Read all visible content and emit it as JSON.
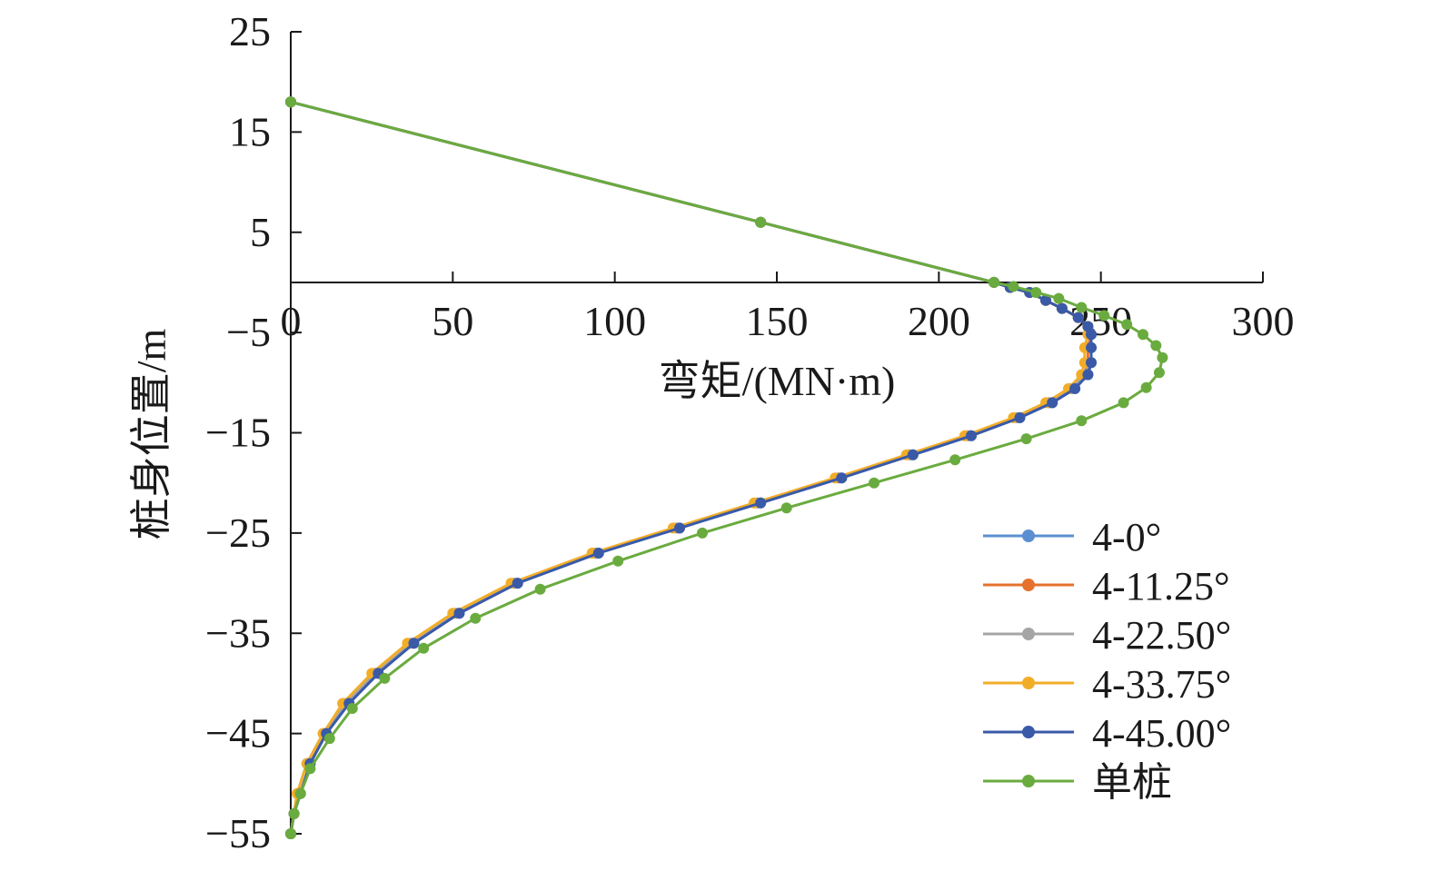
{
  "chart_data": {
    "type": "line",
    "xlabel": "弯矩/(MN·m)",
    "ylabel": "桩身位置/m",
    "xlim": [
      0,
      300
    ],
    "ylim": [
      -55,
      25
    ],
    "x_ticks": [
      "0",
      "50",
      "100",
      "150",
      "200",
      "250",
      "300"
    ],
    "y_ticks": [
      "25",
      "15",
      "5",
      "−5",
      "−15",
      "−25",
      "−35",
      "−45",
      "−55"
    ],
    "grid": false,
    "legend_position": "bottom-right",
    "series": [
      {
        "name": "4-0°",
        "color": "#5b8fd1",
        "points": [
          [
            0,
            18
          ],
          [
            145,
            6
          ],
          [
            217,
            0
          ],
          [
            222,
            -0.5
          ],
          [
            228,
            -1
          ],
          [
            233,
            -1.8
          ],
          [
            238,
            -2.6
          ],
          [
            243,
            -3.5
          ],
          [
            246,
            -4.4
          ],
          [
            247,
            -5.2
          ],
          [
            247,
            -6.5
          ],
          [
            247,
            -8
          ],
          [
            246,
            -9.2
          ],
          [
            242,
            -10.6
          ],
          [
            235,
            -12
          ],
          [
            225,
            -13.5
          ],
          [
            210,
            -15.3
          ],
          [
            192,
            -17.2
          ],
          [
            170,
            -19.5
          ],
          [
            145,
            -22
          ],
          [
            120,
            -24.5
          ],
          [
            95,
            -27
          ],
          [
            70,
            -30
          ],
          [
            52,
            -33
          ],
          [
            38,
            -36
          ],
          [
            27,
            -39
          ],
          [
            18,
            -42
          ],
          [
            11,
            -45
          ],
          [
            6,
            -48
          ],
          [
            3,
            -51
          ],
          [
            1,
            -53
          ],
          [
            0,
            -55
          ]
        ]
      },
      {
        "name": "4-11.25°",
        "color": "#e4722c",
        "points": [
          [
            0,
            18
          ],
          [
            145,
            6
          ],
          [
            217,
            0
          ],
          [
            222,
            -0.5
          ],
          [
            228,
            -1
          ],
          [
            233,
            -1.8
          ],
          [
            238,
            -2.6
          ],
          [
            243,
            -3.5
          ],
          [
            246,
            -4.4
          ],
          [
            247,
            -5.2
          ],
          [
            246,
            -6.5
          ],
          [
            246,
            -8
          ],
          [
            245,
            -9.2
          ],
          [
            241,
            -10.6
          ],
          [
            234,
            -12
          ],
          [
            224,
            -13.5
          ],
          [
            209,
            -15.3
          ],
          [
            191,
            -17.2
          ],
          [
            169,
            -19.5
          ],
          [
            144,
            -22
          ],
          [
            119,
            -24.5
          ],
          [
            94,
            -27
          ],
          [
            69,
            -30
          ],
          [
            51,
            -33
          ],
          [
            37,
            -36
          ],
          [
            26,
            -39
          ],
          [
            17,
            -42
          ],
          [
            10,
            -45
          ],
          [
            5,
            -48
          ],
          [
            2,
            -51
          ],
          [
            1,
            -53
          ],
          [
            0,
            -55
          ]
        ]
      },
      {
        "name": "4-22.50°",
        "color": "#a5a5a5",
        "points": [
          [
            0,
            18
          ],
          [
            145,
            6
          ],
          [
            217,
            0
          ],
          [
            222,
            -0.5
          ],
          [
            228,
            -1
          ],
          [
            233,
            -1.8
          ],
          [
            238,
            -2.6
          ],
          [
            243,
            -3.5
          ],
          [
            246,
            -4.4
          ],
          [
            247,
            -5.2
          ],
          [
            247,
            -6.5
          ],
          [
            247,
            -8
          ],
          [
            245,
            -9.2
          ],
          [
            241,
            -10.6
          ],
          [
            234,
            -12
          ],
          [
            224,
            -13.5
          ],
          [
            209,
            -15.3
          ],
          [
            191,
            -17.2
          ],
          [
            169,
            -19.5
          ],
          [
            144,
            -22
          ],
          [
            119,
            -24.5
          ],
          [
            94,
            -27
          ],
          [
            69,
            -30
          ],
          [
            51,
            -33
          ],
          [
            37,
            -36
          ],
          [
            26,
            -39
          ],
          [
            17,
            -42
          ],
          [
            10,
            -45
          ],
          [
            5,
            -48
          ],
          [
            2,
            -51
          ],
          [
            1,
            -53
          ],
          [
            0,
            -55
          ]
        ]
      },
      {
        "name": "4-33.75°",
        "color": "#f2ad28",
        "points": [
          [
            0,
            18
          ],
          [
            145,
            6
          ],
          [
            217,
            0
          ],
          [
            222,
            -0.5
          ],
          [
            228,
            -1
          ],
          [
            233,
            -1.8
          ],
          [
            238,
            -2.6
          ],
          [
            243,
            -3.5
          ],
          [
            246,
            -4.4
          ],
          [
            246,
            -5.2
          ],
          [
            245,
            -6.5
          ],
          [
            245,
            -8
          ],
          [
            244,
            -9.2
          ],
          [
            240,
            -10.6
          ],
          [
            233,
            -12
          ],
          [
            223,
            -13.5
          ],
          [
            208,
            -15.3
          ],
          [
            190,
            -17.2
          ],
          [
            168,
            -19.5
          ],
          [
            143,
            -22
          ],
          [
            118,
            -24.5
          ],
          [
            93,
            -27
          ],
          [
            68,
            -30
          ],
          [
            50,
            -33
          ],
          [
            36,
            -36
          ],
          [
            25,
            -39
          ],
          [
            16,
            -42
          ],
          [
            10,
            -45
          ],
          [
            5,
            -48
          ],
          [
            2,
            -51
          ],
          [
            1,
            -53
          ],
          [
            0,
            -55
          ]
        ]
      },
      {
        "name": "4-45.00°",
        "color": "#3a5aa8",
        "points": [
          [
            0,
            18
          ],
          [
            145,
            6
          ],
          [
            217,
            0
          ],
          [
            222,
            -0.5
          ],
          [
            228,
            -1
          ],
          [
            233,
            -1.8
          ],
          [
            238,
            -2.6
          ],
          [
            243,
            -3.5
          ],
          [
            246,
            -4.4
          ],
          [
            247,
            -5.2
          ],
          [
            247,
            -6.5
          ],
          [
            247,
            -8
          ],
          [
            246,
            -9.2
          ],
          [
            242,
            -10.6
          ],
          [
            235,
            -12
          ],
          [
            225,
            -13.5
          ],
          [
            210,
            -15.3
          ],
          [
            192,
            -17.2
          ],
          [
            170,
            -19.5
          ],
          [
            145,
            -22
          ],
          [
            120,
            -24.5
          ],
          [
            95,
            -27
          ],
          [
            70,
            -30
          ],
          [
            52,
            -33
          ],
          [
            38,
            -36
          ],
          [
            27,
            -39
          ],
          [
            18,
            -42
          ],
          [
            11,
            -45
          ],
          [
            6,
            -48
          ],
          [
            3,
            -51
          ],
          [
            1,
            -53
          ],
          [
            0,
            -55
          ]
        ]
      },
      {
        "name": "单桩",
        "color": "#6aab3f",
        "points": [
          [
            0,
            18
          ],
          [
            145,
            6
          ],
          [
            217,
            0
          ],
          [
            223,
            -0.4
          ],
          [
            230,
            -1
          ],
          [
            237,
            -1.6
          ],
          [
            244,
            -2.5
          ],
          [
            251,
            -3.3
          ],
          [
            258,
            -4.2
          ],
          [
            263,
            -5.2
          ],
          [
            267,
            -6.3
          ],
          [
            269,
            -7.5
          ],
          [
            268,
            -9
          ],
          [
            264,
            -10.5
          ],
          [
            257,
            -12
          ],
          [
            244,
            -13.8
          ],
          [
            227,
            -15.6
          ],
          [
            205,
            -17.7
          ],
          [
            180,
            -20
          ],
          [
            153,
            -22.5
          ],
          [
            127,
            -25
          ],
          [
            101,
            -27.8
          ],
          [
            77,
            -30.6
          ],
          [
            57,
            -33.5
          ],
          [
            41,
            -36.5
          ],
          [
            29,
            -39.5
          ],
          [
            19,
            -42.5
          ],
          [
            12,
            -45.5
          ],
          [
            6,
            -48.5
          ],
          [
            3,
            -51
          ],
          [
            1,
            -53
          ],
          [
            0,
            -55
          ]
        ]
      }
    ]
  }
}
